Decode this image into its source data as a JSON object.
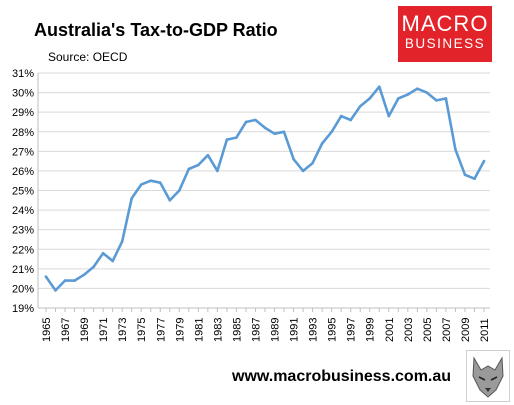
{
  "header": {
    "title": "Australia's Tax-to-GDP Ratio",
    "subtitle": "Source: OECD"
  },
  "logo": {
    "line1": "MACRO",
    "line2": "BUSINESS"
  },
  "footer": {
    "website": "www.macrobusiness.com.au"
  },
  "colors": {
    "line": "#5b9bd5",
    "logo_bg": "#e2232a",
    "grid": "#d9d9d9"
  },
  "chart_data": {
    "type": "line",
    "title": "Australia's Tax-to-GDP Ratio",
    "subtitle": "Source: OECD",
    "x": [
      1965,
      1966,
      1967,
      1968,
      1969,
      1970,
      1971,
      1972,
      1973,
      1974,
      1975,
      1976,
      1977,
      1978,
      1979,
      1980,
      1981,
      1982,
      1983,
      1984,
      1985,
      1986,
      1987,
      1988,
      1989,
      1990,
      1991,
      1992,
      1993,
      1994,
      1995,
      1996,
      1997,
      1998,
      1999,
      2000,
      2001,
      2002,
      2003,
      2004,
      2005,
      2006,
      2007,
      2008,
      2009,
      2010,
      2011
    ],
    "series": [
      {
        "values": [
          20.6,
          19.9,
          20.4,
          20.4,
          20.7,
          21.1,
          21.8,
          21.4,
          22.4,
          24.6,
          25.3,
          25.5,
          25.4,
          24.5,
          25.0,
          26.1,
          26.3,
          26.8,
          26.0,
          27.6,
          27.7,
          28.5,
          28.6,
          28.2,
          27.9,
          28.0,
          26.6,
          26.0,
          26.4,
          27.4,
          28.0,
          28.8,
          28.6,
          29.3,
          29.7,
          30.3,
          28.8,
          29.7,
          29.9,
          30.2,
          30.0,
          29.6,
          29.7,
          27.1,
          25.8,
          25.6,
          26.5
        ]
      }
    ],
    "x_tick_labels": [
      "1965",
      "1967",
      "1969",
      "1971",
      "1973",
      "1975",
      "1977",
      "1979",
      "1981",
      "1983",
      "1985",
      "1987",
      "1989",
      "1991",
      "1993",
      "1995",
      "1997",
      "1999",
      "2001",
      "2003",
      "2005",
      "2007",
      "2009",
      "2011"
    ],
    "y_tick_labels": [
      "19%",
      "20%",
      "21%",
      "22%",
      "23%",
      "24%",
      "25%",
      "26%",
      "27%",
      "28%",
      "29%",
      "30%",
      "31%"
    ],
    "ylim": [
      19,
      31
    ],
    "xlim": [
      1965,
      2011
    ],
    "grid": "horizontal",
    "legend": "none"
  }
}
